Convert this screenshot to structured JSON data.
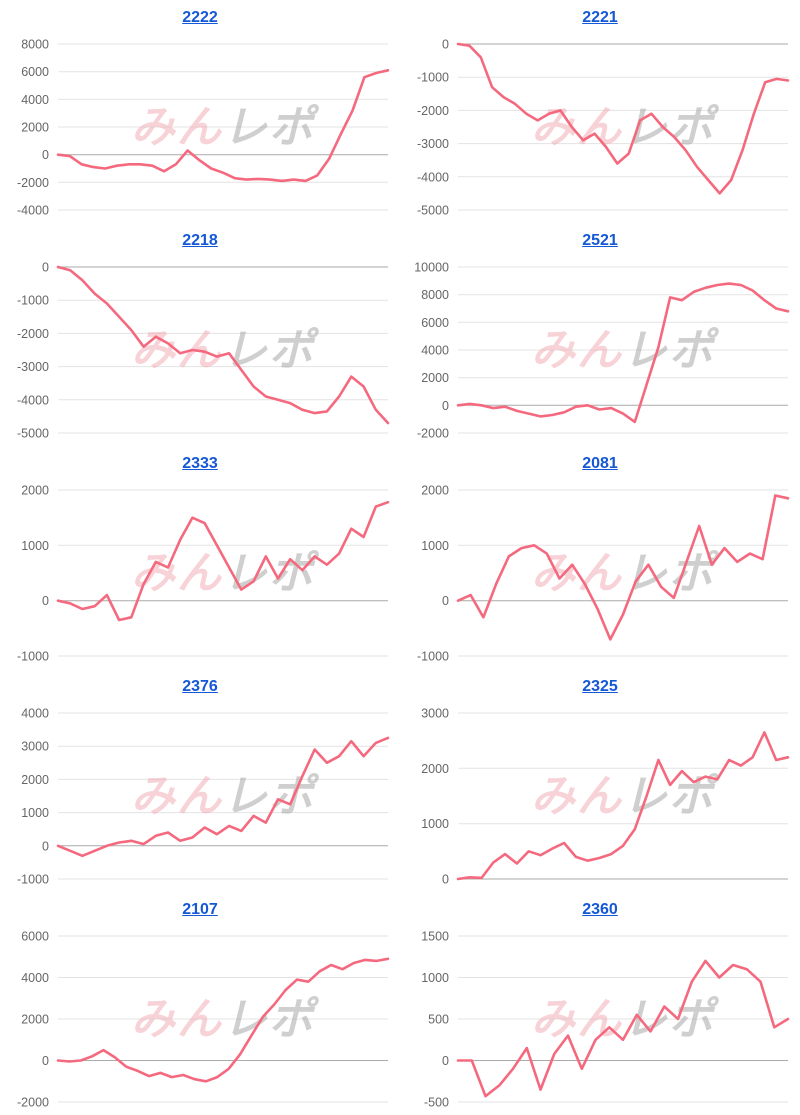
{
  "page": {
    "background": "#ffffff"
  },
  "watermark": {
    "text_pink": "みん",
    "text_gray": "レポ",
    "color_pink": "#f2aeb8",
    "color_gray": "#a8a8a8"
  },
  "styles": {
    "line_color": "#f5697f",
    "grid_color": "#e3e3e3",
    "zero_line_color": "#aaaaaa",
    "link_color": "#1558d6"
  },
  "chart_data": [
    {
      "type": "line",
      "title": "2222",
      "ylim": [
        -4000,
        8000
      ],
      "yticks": [
        8000,
        6000,
        4000,
        2000,
        0,
        -2000,
        -4000
      ],
      "grid": true,
      "legend": "none",
      "series": [
        {
          "name": "2222",
          "values": [
            0,
            -100,
            -700,
            -900,
            -1000,
            -800,
            -700,
            -700,
            -800,
            -1200,
            -700,
            300,
            -400,
            -1000,
            -1300,
            -1700,
            -1800,
            -1750,
            -1800,
            -1900,
            -1800,
            -1900,
            -1500,
            -300,
            1500,
            3200,
            5600,
            5900,
            6100
          ]
        }
      ]
    },
    {
      "type": "line",
      "title": "2221",
      "ylim": [
        -5000,
        0
      ],
      "yticks": [
        0,
        -1000,
        -2000,
        -3000,
        -4000,
        -5000
      ],
      "grid": true,
      "legend": "none",
      "series": [
        {
          "name": "2221",
          "values": [
            0,
            -50,
            -400,
            -1300,
            -1600,
            -1800,
            -2100,
            -2300,
            -2100,
            -2000,
            -2500,
            -2900,
            -2700,
            -3100,
            -3600,
            -3300,
            -2300,
            -2100,
            -2500,
            -2800,
            -3200,
            -3700,
            -4100,
            -4500,
            -4100,
            -3200,
            -2100,
            -1150,
            -1050,
            -1100
          ]
        }
      ]
    },
    {
      "type": "line",
      "title": "2218",
      "ylim": [
        -5000,
        0
      ],
      "yticks": [
        0,
        -1000,
        -2000,
        -3000,
        -4000,
        -5000
      ],
      "grid": true,
      "legend": "none",
      "series": [
        {
          "name": "2218",
          "values": [
            0,
            -100,
            -400,
            -800,
            -1100,
            -1500,
            -1900,
            -2400,
            -2100,
            -2300,
            -2600,
            -2500,
            -2550,
            -2700,
            -2600,
            -3100,
            -3600,
            -3900,
            -4000,
            -4100,
            -4300,
            -4400,
            -4350,
            -3900,
            -3300,
            -3600,
            -4300,
            -4700
          ]
        }
      ]
    },
    {
      "type": "line",
      "title": "2521",
      "ylim": [
        -2000,
        10000
      ],
      "yticks": [
        10000,
        8000,
        6000,
        4000,
        2000,
        0,
        -2000
      ],
      "grid": true,
      "legend": "none",
      "series": [
        {
          "name": "2521",
          "values": [
            0,
            100,
            0,
            -200,
            -100,
            -400,
            -600,
            -800,
            -700,
            -500,
            -100,
            0,
            -300,
            -200,
            -600,
            -1200,
            1500,
            4200,
            7800,
            7600,
            8200,
            8500,
            8700,
            8800,
            8700,
            8300,
            7600,
            7000,
            6800
          ]
        }
      ]
    },
    {
      "type": "line",
      "title": "2333",
      "ylim": [
        -1000,
        2000
      ],
      "yticks": [
        2000,
        1000,
        0,
        -1000
      ],
      "grid": true,
      "legend": "none",
      "series": [
        {
          "name": "2333",
          "values": [
            0,
            -50,
            -150,
            -100,
            100,
            -350,
            -300,
            300,
            700,
            600,
            1100,
            1500,
            1400,
            1000,
            600,
            200,
            350,
            800,
            400,
            750,
            550,
            800,
            650,
            850,
            1300,
            1150,
            1700,
            1780
          ]
        }
      ]
    },
    {
      "type": "line",
      "title": "2081",
      "ylim": [
        -1000,
        2000
      ],
      "yticks": [
        2000,
        1000,
        0,
        -1000
      ],
      "grid": true,
      "legend": "none",
      "series": [
        {
          "name": "2081",
          "values": [
            0,
            100,
            -300,
            300,
            800,
            950,
            1000,
            850,
            400,
            650,
            300,
            -150,
            -700,
            -250,
            350,
            650,
            250,
            50,
            700,
            1350,
            650,
            950,
            700,
            850,
            750,
            1900,
            1850
          ]
        }
      ]
    },
    {
      "type": "line",
      "title": "2376",
      "ylim": [
        -1000,
        4000
      ],
      "yticks": [
        4000,
        3000,
        2000,
        1000,
        0,
        -1000
      ],
      "grid": true,
      "legend": "none",
      "series": [
        {
          "name": "2376",
          "values": [
            0,
            -150,
            -300,
            -150,
            0,
            100,
            150,
            50,
            300,
            400,
            150,
            250,
            550,
            350,
            600,
            450,
            900,
            700,
            1400,
            1250,
            2100,
            2900,
            2500,
            2700,
            3150,
            2700,
            3100,
            3250
          ]
        }
      ]
    },
    {
      "type": "line",
      "title": "2325",
      "ylim": [
        0,
        3000
      ],
      "yticks": [
        3000,
        2000,
        1000,
        0
      ],
      "grid": true,
      "legend": "none",
      "series": [
        {
          "name": "2325",
          "values": [
            0,
            30,
            20,
            300,
            450,
            280,
            500,
            430,
            550,
            650,
            400,
            330,
            380,
            450,
            600,
            900,
            1500,
            2150,
            1700,
            1950,
            1750,
            1850,
            1800,
            2150,
            2050,
            2200,
            2650,
            2150,
            2200
          ]
        }
      ]
    },
    {
      "type": "line",
      "title": "2107",
      "ylim": [
        -2000,
        6000
      ],
      "yticks": [
        6000,
        4000,
        2000,
        0,
        -2000
      ],
      "grid": true,
      "legend": "none",
      "series": [
        {
          "name": "2107",
          "values": [
            0,
            -50,
            0,
            200,
            500,
            150,
            -300,
            -500,
            -750,
            -600,
            -800,
            -700,
            -900,
            -1000,
            -800,
            -400,
            300,
            1200,
            2100,
            2700,
            3400,
            3900,
            3800,
            4300,
            4600,
            4400,
            4700,
            4850,
            4800,
            4900
          ]
        }
      ]
    },
    {
      "type": "line",
      "title": "2360",
      "ylim": [
        -500,
        1500
      ],
      "yticks": [
        1500,
        1000,
        500,
        0,
        -500
      ],
      "grid": true,
      "legend": "none",
      "series": [
        {
          "name": "2360",
          "values": [
            0,
            0,
            -430,
            -300,
            -100,
            150,
            -350,
            80,
            300,
            -100,
            250,
            400,
            250,
            550,
            350,
            650,
            500,
            950,
            1200,
            1000,
            1150,
            1100,
            950,
            400,
            500
          ]
        }
      ]
    }
  ]
}
